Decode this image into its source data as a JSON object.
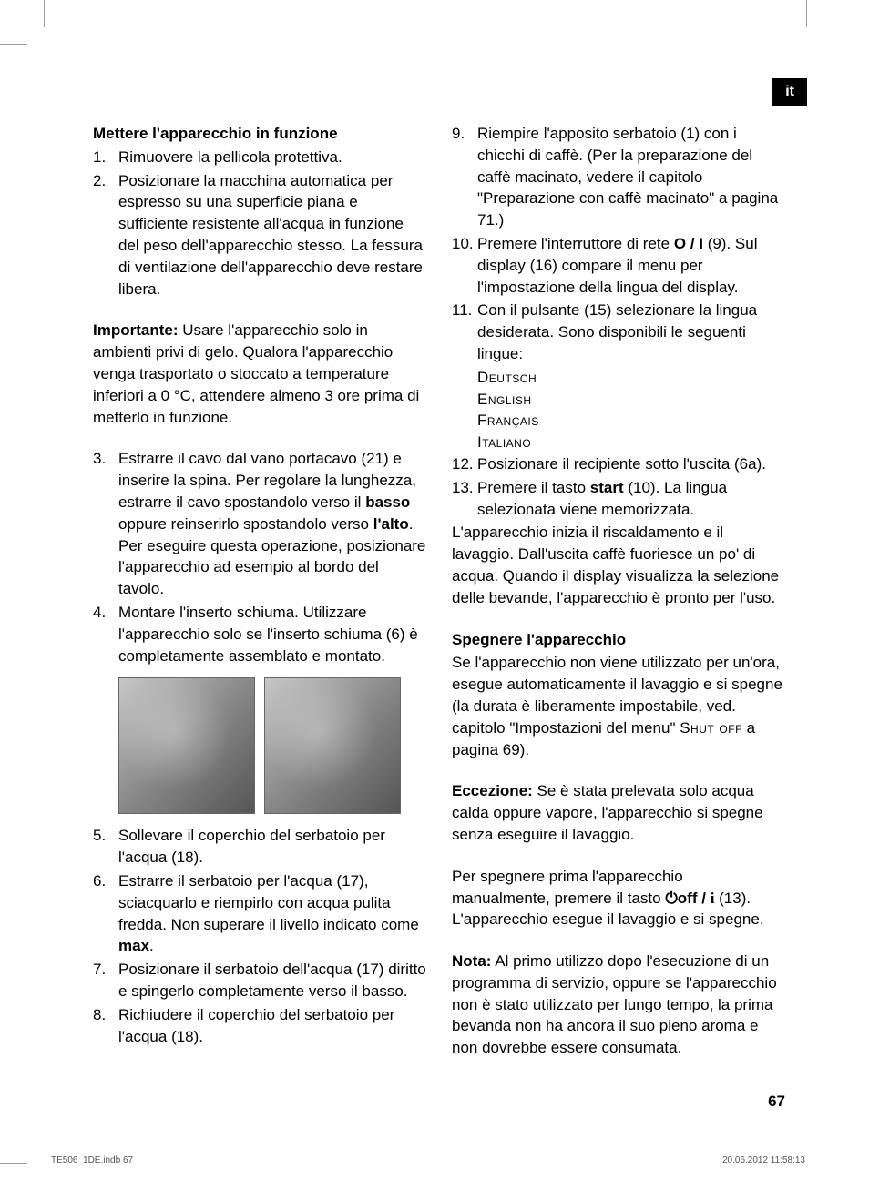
{
  "lang_tab": "it",
  "col_left": {
    "heading": "Mettere l'apparecchio in funzione",
    "items_1_2": [
      {
        "n": "1.",
        "text": "Rimuovere la pellicola protettiva."
      },
      {
        "n": "2.",
        "text": "Posizionare la macchina automatica per espresso su una superficie piana e sufficiente resistente all'acqua in funzione del peso dell'apparecchio stesso. La fessura di ventilazione dell'apparecchio deve restare libera."
      }
    ],
    "importante_label": "Importante:",
    "importante_text": " Usare l'apparecchio solo in ambienti privi di gelo. Qualora l'apparecchio venga trasportato o stoccato a temperature inferiori a 0 °C, attendere almeno 3 ore prima di metterlo in funzione.",
    "items_3_4": [
      {
        "n": "3.",
        "pre": "Estrarre il cavo dal vano portacavo (21) e inserire la spina. Per regolare la lunghezza, estrarre il cavo spostandolo verso il ",
        "b1": "basso",
        "mid": " oppure reinserirlo spostandolo verso ",
        "b2": "l'alto",
        "post": ". Per eseguire questa operazione, posizionare l'apparecchio ad esempio al bordo del tavolo."
      },
      {
        "n": "4.",
        "text": "Montare l'inserto schiuma. Utilizzare l'apparecchio solo se l'inserto schiuma (6) è completamente assemblato e montato."
      }
    ],
    "items_5_8": [
      {
        "n": "5.",
        "text": "Sollevare il coperchio del serbatoio per l'acqua (18)."
      },
      {
        "n": "6.",
        "pre": "Estrarre il serbatoio per l'acqua (17), sciacquarlo e riempirlo con acqua pulita fredda. Non superare il livello indicato come ",
        "b1": "max",
        "post": "."
      },
      {
        "n": "7.",
        "text": "Posizionare il serbatoio dell'acqua (17) diritto e spingerlo completamente verso il basso."
      },
      {
        "n": "8.",
        "text": "Richiudere il coperchio del serbatoio per l'acqua (18)."
      }
    ]
  },
  "col_right": {
    "items_9_11": [
      {
        "n": "9.",
        "text": "Riempire l'apposito serbatoio (1) con i chicchi di caffè. (Per la preparazione del caffè macinato, vedere il capitolo \"Preparazione con caffè macinato\" a pagina 71.)"
      },
      {
        "n": "10.",
        "pre": "Premere l'interruttore di rete ",
        "b1": "O / I",
        "post": " (9). Sul display (16) compare il menu per l'impostazione della lingua del display."
      },
      {
        "n": "11.",
        "text": "Con il pulsante (15) selezionare la lingua desiderata. Sono disponibili le seguenti lingue:"
      }
    ],
    "languages": [
      "Deutsch",
      "English",
      "Français",
      "Italiano"
    ],
    "items_12_13": [
      {
        "n": "12.",
        "text": "Posizionare il recipiente sotto l'uscita (6a)."
      },
      {
        "n": "13.",
        "pre": "Premere il tasto ",
        "b1": "start",
        "post": " (10). La lingua selezionata viene memorizzata."
      }
    ],
    "para_after_13": "L'apparecchio inizia il riscaldamento e il lavaggio. Dall'uscita caffè fuoriesce un po' di acqua. Quando il display visualizza la selezione delle bevande, l'apparecchio è pronto per l'uso.",
    "heading2": "Spegnere l'apparecchio",
    "para_spegnere_pre": "Se l'apparecchio non viene utilizzato per un'ora, esegue automaticamente il lavaggio e si spegne (la durata è liberamente impostabile, ved. capitolo \"Impostazioni del menu\" ",
    "shut_off": "Shut off",
    "para_spegnere_post": " a pagina 69).",
    "eccezione_label": "Eccezione:",
    "eccezione_text": " Se è stata prelevata solo acqua calda oppure vapore, l'apparecchio si spegne senza eseguire il lavaggio.",
    "para_manual_pre": "Per spegnere prima l'apparecchio manualmente, premere il tasto ",
    "off_label": "off / ",
    "info_i": "i",
    "para_manual_post": " (13). L'apparecchio esegue il lavaggio e si spegne.",
    "nota_label": "Nota:",
    "nota_text": " Al primo utilizzo dopo l'esecuzione di un programma di servizio, oppure se l'apparecchio non è stato utilizzato per lungo tempo, la prima bevanda non ha ancora il suo pieno aroma e non dovrebbe essere consumata."
  },
  "page_number": "67",
  "footer_left": "TE506_1DE.indb   67",
  "footer_right": "20.06.2012   11:58:13"
}
